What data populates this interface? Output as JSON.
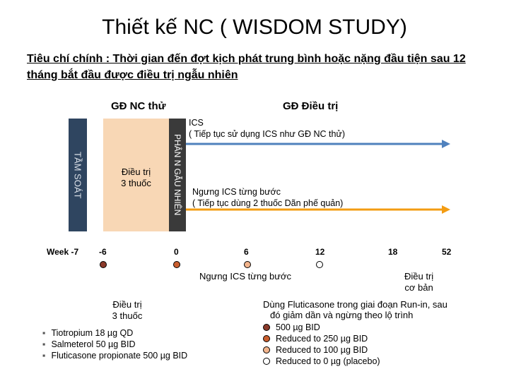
{
  "title": "Thiết kế NC ( WISDOM STUDY)",
  "subtitle": "Tiêu chí chính : Thời gian đến đợt kịch phát trung bình hoặc nặng đầu tiện sau 12 tháng bắt đầu được điều trị ngẫu nhiên",
  "phases": {
    "run_in": "GĐ NC thử",
    "treatment": "GĐ Điều trị"
  },
  "screening_label": "TẦM SOÁT",
  "randomisation_label": "PHÂN N GẪU NHIÊN",
  "run_in_block": {
    "line1": "Điều trị",
    "line2": "3 thuốc"
  },
  "arm_ics": {
    "line1": "ICS",
    "line2": "( Tiếp tục sử dụng ICS như GĐ NC thử)"
  },
  "arm_withdrawal": {
    "line1": "Ngưng ICS từng bước",
    "line2": "( Tiếp tục dùng 2 thuốc Dãn phế quản)"
  },
  "timeline": {
    "week_label": "Week -7",
    "ticks": [
      "-6",
      "0",
      "6",
      "12",
      "18",
      "52"
    ]
  },
  "notes": {
    "stepwise": "Ngưng ICS từng bước",
    "basic_line1": "Điều trị",
    "basic_line2": "cơ bản",
    "triple_line1": "Điều trị",
    "triple_line2": "3 thuốc"
  },
  "drugs": [
    "Tiotropium 18 µg QD",
    "Salmeterol 50 µg BID",
    "Fluticasone propionate 500 µg BID"
  ],
  "legend": {
    "heading_line1": "Dùng Fluticasone trong giai đoạn Run-in, sau",
    "heading_line2": "đó giảm dần và ngừng  theo lộ trình",
    "items": [
      {
        "label": "500 µg BID",
        "color": "#8b3a2a"
      },
      {
        "label": "Reduced to 250 µg BID",
        "color": "#c95e2e"
      },
      {
        "label": "Reduced to 100 µg BID",
        "color": "#f2b48c"
      },
      {
        "label": "Reduced to 0 µg (placebo)",
        "color": "#ffffff"
      }
    ]
  },
  "colors": {
    "screening": "#2f4560",
    "run_in": "#f8d7b5",
    "randomisation": "#3a3a3a",
    "ics_arm": "#4f81bd",
    "withdrawal_arm": "#f39c12",
    "dot_dark": "#8b3a2a",
    "dot_mid": "#c95e2e",
    "dot_light": "#f2b48c"
  }
}
